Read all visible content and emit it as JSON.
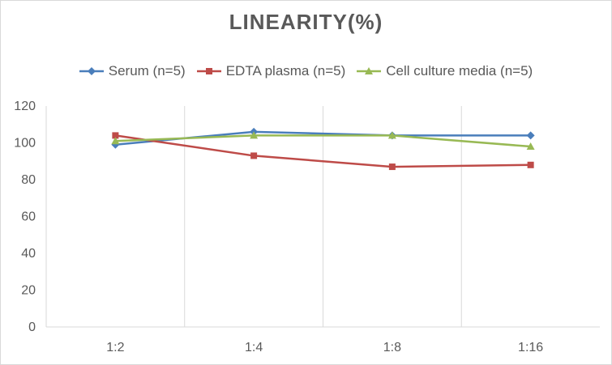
{
  "chart_data": {
    "type": "line",
    "title": "LINEARITY(%)",
    "categories": [
      "1:2",
      "1:4",
      "1:8",
      "1:16"
    ],
    "ylim": [
      0,
      120
    ],
    "yticks": [
      0,
      20,
      40,
      60,
      80,
      100,
      120
    ],
    "grid": "vertical",
    "legend_position": "top",
    "series": [
      {
        "name": "Serum (n=5)",
        "color": "#4a7ebb",
        "marker": "diamond",
        "values": [
          99,
          106,
          104,
          104
        ]
      },
      {
        "name": "EDTA plasma (n=5)",
        "color": "#be4b48",
        "marker": "square",
        "values": [
          104,
          93,
          87,
          88
        ]
      },
      {
        "name": "Cell culture media (n=5)",
        "color": "#98b954",
        "marker": "triangle",
        "values": [
          101,
          104,
          104,
          98
        ]
      }
    ]
  }
}
